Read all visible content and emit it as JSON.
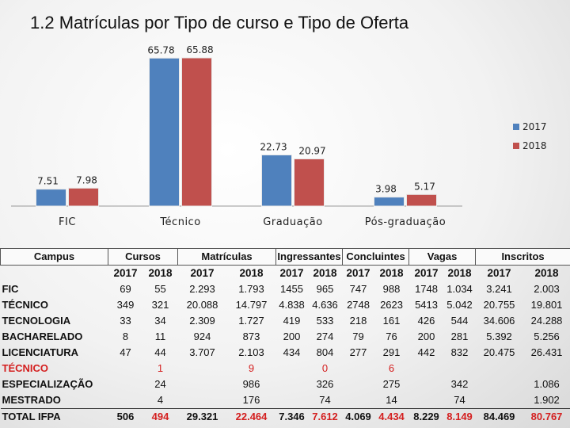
{
  "page_title": "1.2 Matrículas por Tipo de curso  e Tipo de Oferta",
  "chart_data": {
    "type": "bar",
    "title": "",
    "categories": [
      "FIC",
      "Técnico",
      "Graduação",
      "Pós-graduação"
    ],
    "series": [
      {
        "name": "2017",
        "values": [
          7.51,
          65.78,
          22.73,
          3.98
        ],
        "labels": [
          "7.51",
          "65.78",
          "22.73",
          "3.98"
        ]
      },
      {
        "name": "2018",
        "values": [
          7.98,
          65.88,
          20.97,
          5.17
        ],
        "labels": [
          "7.98",
          "65.88",
          "20.97",
          "5.17"
        ]
      }
    ],
    "colors": {
      "2017": "#4f81bd",
      "2018": "#c0504d"
    },
    "ylim": [
      0,
      70
    ],
    "legend_position": "right",
    "xlabel": "",
    "ylabel": ""
  },
  "table": {
    "group_headers": [
      "Campus",
      "Cursos",
      "Matrículas",
      "Ingressantes",
      "Concluintes",
      "Vagas",
      "Inscritos"
    ],
    "years": [
      "2017",
      "2018",
      "2017",
      "2018",
      "2017",
      "2018",
      "2017",
      "2018",
      "2017",
      "2018",
      "2017",
      "2018"
    ],
    "rows": [
      {
        "label": "FIC",
        "values": [
          "69",
          "55",
          "2.293",
          "1.793",
          "1455",
          "965",
          "747",
          "988",
          "1748",
          "1.034",
          "3.241",
          "2.003"
        ]
      },
      {
        "label": "TÉCNICO",
        "values": [
          "349",
          "321",
          "20.088",
          "14.797",
          "4.838",
          "4.636",
          "2748",
          "2623",
          "5413",
          "5.042",
          "20.755",
          "19.801"
        ]
      },
      {
        "label": "TECNOLOGIA",
        "values": [
          "33",
          "34",
          "2.309",
          "1.727",
          "419",
          "533",
          "218",
          "161",
          "426",
          "544",
          "34.606",
          "24.288"
        ]
      },
      {
        "label": "BACHARELADO",
        "values": [
          "8",
          "11",
          "924",
          "873",
          "200",
          "274",
          "79",
          "76",
          "200",
          "281",
          "5.392",
          "5.256"
        ]
      },
      {
        "label": "LICENCIATURA",
        "values": [
          "47",
          "44",
          "3.707",
          "2.103",
          "434",
          "804",
          "277",
          "291",
          "442",
          "832",
          "20.475",
          "26.431"
        ]
      },
      {
        "label": "TÉCNICO",
        "values": [
          "",
          "1",
          "",
          "9",
          "",
          "0",
          "",
          "6",
          "",
          "",
          "",
          ""
        ]
      },
      {
        "label": "ESPECIALIZAÇÃO",
        "values": [
          "",
          "24",
          "",
          "986",
          "",
          "326",
          "",
          "275",
          "",
          "342",
          "",
          "1.086"
        ]
      },
      {
        "label": "MESTRADO",
        "values": [
          "",
          "4",
          "",
          "176",
          "",
          "74",
          "",
          "14",
          "",
          "74",
          "",
          "1.902"
        ]
      },
      {
        "label": "TOTAL IFPA",
        "values": [
          "506",
          "494",
          "29.321",
          "22.464",
          "7.346",
          "7.612",
          "4.069",
          "4.434",
          "8.229",
          "8.149",
          "84.469",
          "80.767"
        ]
      }
    ]
  }
}
